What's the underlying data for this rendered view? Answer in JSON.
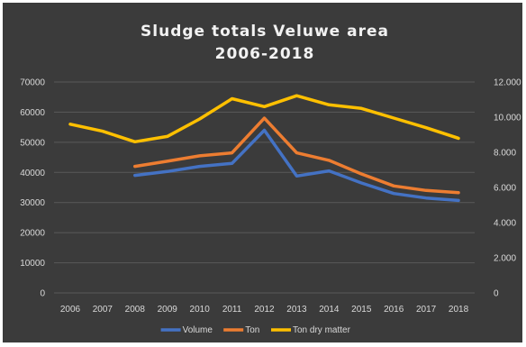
{
  "chart_data": {
    "type": "line",
    "title_lines": [
      "Sludge totals Veluwe area",
      "2006-2018"
    ],
    "categories": [
      "2006",
      "2007",
      "2008",
      "2009",
      "2010",
      "2011",
      "2012",
      "2013",
      "2014",
      "2015",
      "2016",
      "2017",
      "2018"
    ],
    "y_left": {
      "min": 0,
      "max": 70000,
      "ticks": [
        "0",
        "10000",
        "20000",
        "30000",
        "40000",
        "50000",
        "60000",
        "70000"
      ]
    },
    "y_right": {
      "min": 0,
      "max": 12000,
      "ticks": [
        "0",
        "2.000",
        "4.000",
        "6.000",
        "8.000",
        "10.000",
        "12.000"
      ]
    },
    "grid": true,
    "legend_position": "bottom",
    "series": [
      {
        "name": "Volume",
        "color": "#4472c4",
        "axis": "left",
        "values": [
          null,
          null,
          39000,
          40300,
          42000,
          43000,
          54000,
          38800,
          40500,
          36500,
          33000,
          31500,
          30700
        ]
      },
      {
        "name": "Ton",
        "color": "#ed7d31",
        "axis": "left",
        "values": [
          null,
          null,
          42000,
          43700,
          45500,
          46500,
          58000,
          46500,
          44000,
          39500,
          35500,
          34000,
          33300
        ]
      },
      {
        "name": "Ton dry matter",
        "color": "#ffc000",
        "axis": "right",
        "values": [
          9600,
          9200,
          8600,
          8900,
          9900,
          11050,
          10600,
          11220,
          10700,
          10500,
          9950,
          9400,
          8800
        ]
      }
    ]
  }
}
